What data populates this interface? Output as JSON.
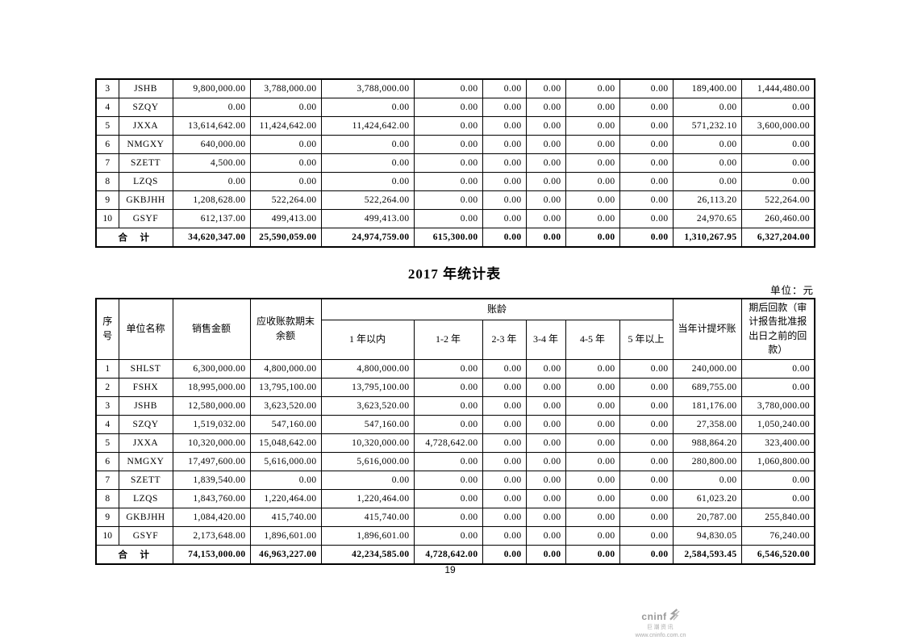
{
  "page": {
    "number": "19"
  },
  "table_continued": {
    "rows": [
      {
        "no": "3",
        "name": "JSHB",
        "values": [
          "9,800,000.00",
          "3,788,000.00",
          "3,788,000.00",
          "0.00",
          "0.00",
          "0.00",
          "0.00",
          "0.00",
          "189,400.00",
          "1,444,480.00"
        ]
      },
      {
        "no": "4",
        "name": "SZQY",
        "values": [
          "0.00",
          "0.00",
          "0.00",
          "0.00",
          "0.00",
          "0.00",
          "0.00",
          "0.00",
          "0.00",
          "0.00"
        ]
      },
      {
        "no": "5",
        "name": "JXXA",
        "values": [
          "13,614,642.00",
          "11,424,642.00",
          "11,424,642.00",
          "0.00",
          "0.00",
          "0.00",
          "0.00",
          "0.00",
          "571,232.10",
          "3,600,000.00"
        ]
      },
      {
        "no": "6",
        "name": "NMGXY",
        "values": [
          "640,000.00",
          "0.00",
          "0.00",
          "0.00",
          "0.00",
          "0.00",
          "0.00",
          "0.00",
          "0.00",
          "0.00"
        ]
      },
      {
        "no": "7",
        "name": "SZETT",
        "values": [
          "4,500.00",
          "0.00",
          "0.00",
          "0.00",
          "0.00",
          "0.00",
          "0.00",
          "0.00",
          "0.00",
          "0.00"
        ]
      },
      {
        "no": "8",
        "name": "LZQS",
        "values": [
          "0.00",
          "0.00",
          "0.00",
          "0.00",
          "0.00",
          "0.00",
          "0.00",
          "0.00",
          "0.00",
          "0.00"
        ]
      },
      {
        "no": "9",
        "name": "GKBJHH",
        "values": [
          "1,208,628.00",
          "522,264.00",
          "522,264.00",
          "0.00",
          "0.00",
          "0.00",
          "0.00",
          "0.00",
          "26,113.20",
          "522,264.00"
        ]
      },
      {
        "no": "10",
        "name": "GSYF",
        "values": [
          "612,137.00",
          "499,413.00",
          "499,413.00",
          "0.00",
          "0.00",
          "0.00",
          "0.00",
          "0.00",
          "24,970.65",
          "260,460.00"
        ]
      }
    ],
    "total": {
      "label": "合　计",
      "values": [
        "34,620,347.00",
        "25,590,059.00",
        "24,974,759.00",
        "615,300.00",
        "0.00",
        "0.00",
        "0.00",
        "0.00",
        "1,310,267.95",
        "6,327,204.00"
      ]
    }
  },
  "table_2017": {
    "title": "2017 年统计表",
    "unit": "单位：元",
    "headers": {
      "no": "序号",
      "name": "单位名称",
      "sales": "销售金额",
      "balance": "应收账款期末余额",
      "aging": "账龄",
      "aging_cols": [
        "1 年以内",
        "1-2 年",
        "2-3 年",
        "3-4 年",
        "4-5 年",
        "5 年以上"
      ],
      "provision": "当年计提坏账",
      "post_collection": "期后回款（审计报告批准报出日之前的回款）"
    },
    "rows": [
      {
        "no": "1",
        "name": "SHLST",
        "values": [
          "6,300,000.00",
          "4,800,000.00",
          "4,800,000.00",
          "0.00",
          "0.00",
          "0.00",
          "0.00",
          "0.00",
          "240,000.00",
          "0.00"
        ]
      },
      {
        "no": "2",
        "name": "FSHX",
        "values": [
          "18,995,000.00",
          "13,795,100.00",
          "13,795,100.00",
          "0.00",
          "0.00",
          "0.00",
          "0.00",
          "0.00",
          "689,755.00",
          "0.00"
        ]
      },
      {
        "no": "3",
        "name": "JSHB",
        "values": [
          "12,580,000.00",
          "3,623,520.00",
          "3,623,520.00",
          "0.00",
          "0.00",
          "0.00",
          "0.00",
          "0.00",
          "181,176.00",
          "3,780,000.00"
        ]
      },
      {
        "no": "4",
        "name": "SZQY",
        "values": [
          "1,519,032.00",
          "547,160.00",
          "547,160.00",
          "0.00",
          "0.00",
          "0.00",
          "0.00",
          "0.00",
          "27,358.00",
          "1,050,240.00"
        ]
      },
      {
        "no": "5",
        "name": "JXXA",
        "values": [
          "10,320,000.00",
          "15,048,642.00",
          "10,320,000.00",
          "4,728,642.00",
          "0.00",
          "0.00",
          "0.00",
          "0.00",
          "988,864.20",
          "323,400.00"
        ]
      },
      {
        "no": "6",
        "name": "NMGXY",
        "values": [
          "17,497,600.00",
          "5,616,000.00",
          "5,616,000.00",
          "0.00",
          "0.00",
          "0.00",
          "0.00",
          "0.00",
          "280,800.00",
          "1,060,800.00"
        ]
      },
      {
        "no": "7",
        "name": "SZETT",
        "values": [
          "1,839,540.00",
          "0.00",
          "0.00",
          "0.00",
          "0.00",
          "0.00",
          "0.00",
          "0.00",
          "0.00",
          "0.00"
        ]
      },
      {
        "no": "8",
        "name": "LZQS",
        "values": [
          "1,843,760.00",
          "1,220,464.00",
          "1,220,464.00",
          "0.00",
          "0.00",
          "0.00",
          "0.00",
          "0.00",
          "61,023.20",
          "0.00"
        ]
      },
      {
        "no": "9",
        "name": "GKBJHH",
        "values": [
          "1,084,420.00",
          "415,740.00",
          "415,740.00",
          "0.00",
          "0.00",
          "0.00",
          "0.00",
          "0.00",
          "20,787.00",
          "255,840.00"
        ]
      },
      {
        "no": "10",
        "name": "GSYF",
        "values": [
          "2,173,648.00",
          "1,896,601.00",
          "1,896,601.00",
          "0.00",
          "0.00",
          "0.00",
          "0.00",
          "0.00",
          "94,830.05",
          "76,240.00"
        ]
      }
    ],
    "total": {
      "label": "合　计",
      "values": [
        "74,153,000.00",
        "46,963,227.00",
        "42,234,585.00",
        "4,728,642.00",
        "0.00",
        "0.00",
        "0.00",
        "0.00",
        "2,584,593.45",
        "6,546,520.00"
      ]
    }
  },
  "logo": {
    "brand": "cninf",
    "subtitle": "巨潮资讯",
    "url": "www.cninfo.com.cn"
  }
}
